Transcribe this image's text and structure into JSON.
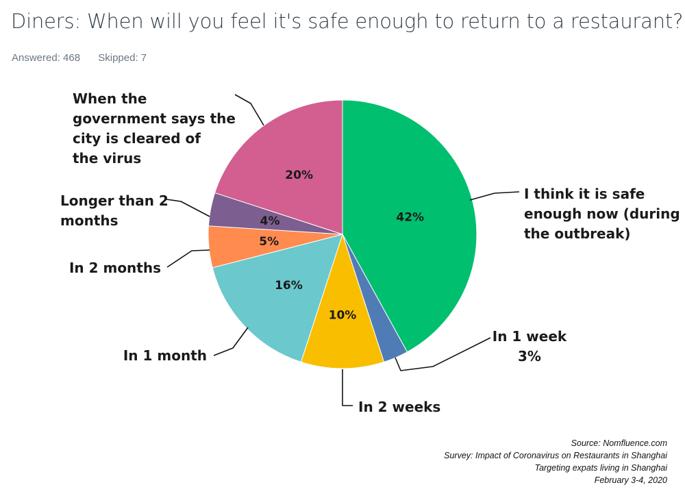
{
  "title": "Diners: When will you feel it's safe enough to return to a restaurant?",
  "answered": "Answered: 468",
  "skipped": "Skipped: 7",
  "source_lines": [
    "Source: Nomfluence.com",
    "Survey: Impact of Coronavirus on Restaurants in Shanghai",
    "Targeting expats living in Shanghai",
    "February 3-4, 2020"
  ],
  "chart_data": {
    "type": "pie",
    "title": "Diners: When will you feel it's safe enough to return to a restaurant?",
    "slices": [
      {
        "label": "I think it is safe enough now (during the outbreak)",
        "label_lines": [
          "I think it is safe",
          "enough now (during",
          "the outbreak)"
        ],
        "value": 42,
        "value_label": "42%",
        "color": "#00bf6f"
      },
      {
        "label": "In 1 week",
        "label_lines": [
          "In 1 week",
          "3%"
        ],
        "value": 3,
        "value_label": "",
        "color": "#507cb6"
      },
      {
        "label": "In 2 weeks",
        "label_lines": [
          "In 2 weeks"
        ],
        "value": 10,
        "value_label": "10%",
        "color": "#f9be00"
      },
      {
        "label": "In 1 month",
        "label_lines": [
          "In 1 month"
        ],
        "value": 16,
        "value_label": "16%",
        "color": "#6bc8cd"
      },
      {
        "label": "In 2 months",
        "label_lines": [
          "In 2 months"
        ],
        "value": 5,
        "value_label": "5%",
        "color": "#ff8b4f"
      },
      {
        "label": "Longer than 2 months",
        "label_lines": [
          "Longer than 2",
          "months"
        ],
        "value": 4,
        "value_label": "4%",
        "color": "#7d5e90"
      },
      {
        "label": "When the government says the city is cleared of the virus",
        "label_lines": [
          "When the",
          "government says the",
          "city is cleared of",
          "the virus"
        ],
        "value": 20,
        "value_label": "20%",
        "color": "#d25f90"
      }
    ]
  }
}
